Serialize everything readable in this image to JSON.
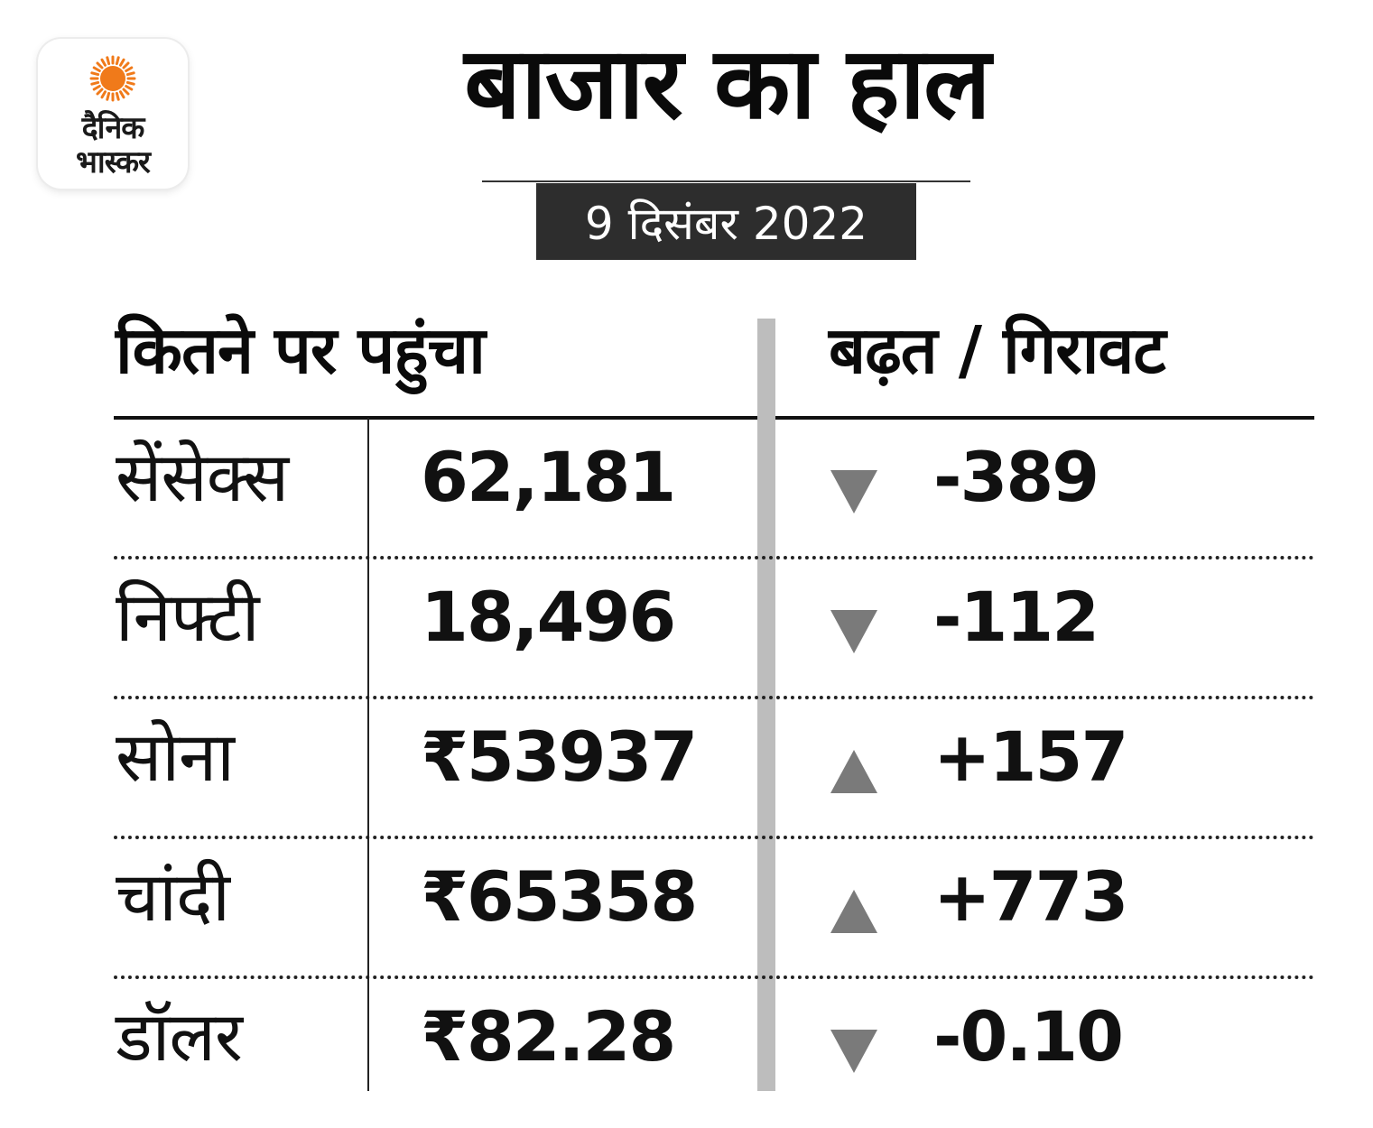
{
  "brand": {
    "logo_line1": "दैनिक",
    "logo_line2": "भास्कर",
    "sun_color": "#f07a1a"
  },
  "title": "बाजार का हाल",
  "date": "9 दिसंबर 2022",
  "headers": {
    "left": "कितने पर पहुंचा",
    "right": "बढ़त / गिरावट"
  },
  "rows": [
    {
      "name": "सेंसेक्स",
      "value": "62,181",
      "change": "-389",
      "direction": "down"
    },
    {
      "name": "निफ्टी",
      "value": "18,496",
      "change": "-112",
      "direction": "down"
    },
    {
      "name": "सोना",
      "value": "₹53937",
      "change": "+157",
      "direction": "up"
    },
    {
      "name": "चांदी",
      "value": "₹65358",
      "change": "+773",
      "direction": "up"
    },
    {
      "name": "डॉलर",
      "value": "₹82.28",
      "change": "-0.10",
      "direction": "down"
    }
  ],
  "colors": {
    "arrow": "#7a7a7a",
    "divider": "#bdbdbd",
    "date_badge": "#2d2d2d"
  },
  "icons": {
    "down": "triangle-down-icon",
    "up": "triangle-up-icon"
  }
}
